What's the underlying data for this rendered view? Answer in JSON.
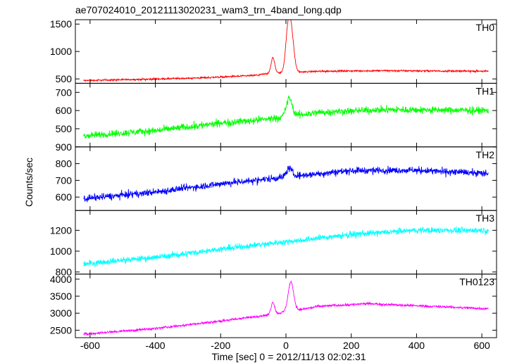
{
  "title": "ae707024010_20121113020231_wam3_trn_4band_long.qdp",
  "xlabel": "Time [sec] 0 = 2012/11/13 02:02:31",
  "ylabel": "Counts/sec",
  "chart_data": {
    "type": "line",
    "title": "ae707024010_20121113020231_wam3_trn_4band_long.qdp",
    "xlabel": "Time [sec] 0 = 2012/11/13 02:02:31",
    "ylabel": "Counts/sec",
    "xlim": [
      -645,
      645
    ],
    "x_ticks": [
      -600,
      -400,
      -200,
      0,
      200,
      400,
      600
    ],
    "x_data_range": [
      -620,
      620
    ],
    "grid": false,
    "legend": "none",
    "panels": [
      {
        "name": "TH0",
        "color": "#ff0000",
        "ylim": [
          420,
          1580
        ],
        "y_ticks": [
          500,
          1000,
          1500
        ],
        "tick_labels": [
          "500",
          "1000",
          "1500"
        ],
        "noise_amplitude": 30,
        "baseline": [
          [
            -620,
            470
          ],
          [
            -300,
            510
          ],
          [
            -100,
            560
          ],
          [
            -50,
            600
          ],
          [
            100,
            640
          ],
          [
            300,
            650
          ],
          [
            620,
            640
          ]
        ],
        "peaks": [
          {
            "x": -40,
            "height": 280,
            "width": 8
          },
          {
            "x": 5,
            "height": 500,
            "width": 10
          },
          {
            "x": 15,
            "height": 780,
            "width": 12
          }
        ]
      },
      {
        "name": "TH1",
        "color": "#00ff00",
        "ylim": [
          400,
          750
        ],
        "y_ticks": [
          500,
          600,
          700
        ],
        "tick_labels": [
          "500",
          "600",
          "700"
        ],
        "noise_amplitude": 38,
        "baseline": [
          [
            -620,
            460
          ],
          [
            -400,
            490
          ],
          [
            -200,
            530
          ],
          [
            -50,
            555
          ],
          [
            100,
            590
          ],
          [
            300,
            605
          ],
          [
            620,
            600
          ]
        ],
        "peaks": [
          {
            "x": 10,
            "height": 100,
            "width": 12
          }
        ]
      },
      {
        "name": "TH2",
        "color": "#0000ff",
        "ylim": [
          520,
          900
        ],
        "y_ticks": [
          600,
          700,
          800,
          900
        ],
        "tick_labels": [
          "600",
          "700",
          "800",
          "900"
        ],
        "noise_amplitude": 40,
        "baseline": [
          [
            -620,
            590
          ],
          [
            -400,
            630
          ],
          [
            -200,
            680
          ],
          [
            0,
            720
          ],
          [
            200,
            760
          ],
          [
            400,
            760
          ],
          [
            620,
            740
          ]
        ],
        "peaks": [
          {
            "x": 10,
            "height": 50,
            "width": 12
          }
        ]
      },
      {
        "name": "TH3",
        "color": "#00ffff",
        "ylim": [
          780,
          1390
        ],
        "y_ticks": [
          800,
          1000,
          1200
        ],
        "tick_labels": [
          "800",
          "1000",
          "1200"
        ],
        "noise_amplitude": 55,
        "baseline": [
          [
            -620,
            880
          ],
          [
            -400,
            940
          ],
          [
            -200,
            1020
          ],
          [
            0,
            1090
          ],
          [
            200,
            1160
          ],
          [
            400,
            1200
          ],
          [
            620,
            1200
          ]
        ],
        "peaks": []
      },
      {
        "name": "TH0123",
        "color": "#ff00ff",
        "ylim": [
          2280,
          4150
        ],
        "y_ticks": [
          2500,
          3000,
          3500,
          4000
        ],
        "tick_labels": [
          "2500",
          "3000",
          "3500",
          "4000"
        ],
        "noise_amplitude": 70,
        "baseline": [
          [
            -620,
            2380
          ],
          [
            -400,
            2550
          ],
          [
            -200,
            2770
          ],
          [
            -50,
            2950
          ],
          [
            100,
            3200
          ],
          [
            250,
            3280
          ],
          [
            620,
            3130
          ]
        ],
        "peaks": [
          {
            "x": -40,
            "height": 350,
            "width": 8
          },
          {
            "x": 15,
            "height": 850,
            "width": 12
          }
        ]
      }
    ]
  }
}
